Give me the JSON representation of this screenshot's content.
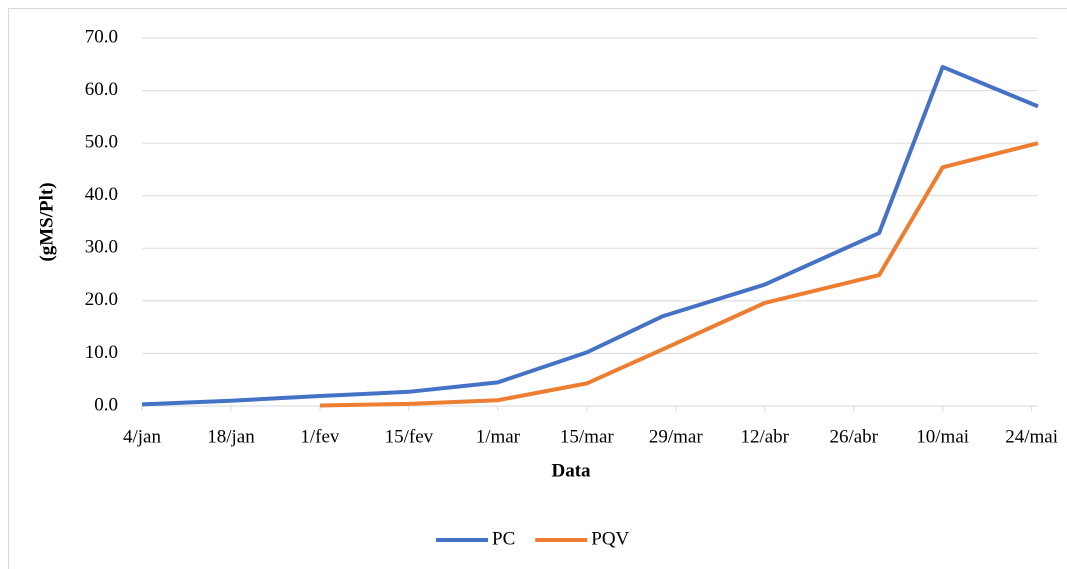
{
  "chart_data": {
    "type": "line",
    "x_label": "Data",
    "y_label": "(gMS/Plt)",
    "x": [
      4,
      18,
      32,
      46,
      60,
      74,
      86,
      102,
      120,
      130,
      145
    ],
    "series": [
      {
        "name": "PC",
        "color": "#4472c4",
        "values": [
          0.3,
          1.0,
          1.9,
          2.7,
          4.5,
          10.2,
          17.1,
          23.1,
          32.9,
          64.5,
          57.0
        ]
      },
      {
        "name": "PQV",
        "color": "#ed7d31",
        "values": [
          null,
          null,
          0.1,
          0.4,
          1.1,
          4.3,
          10.8,
          19.6,
          24.9,
          45.4,
          50.0
        ]
      }
    ],
    "xlim": [
      4,
      145
    ],
    "xticks": [
      {
        "value": 4,
        "label": "4/jan"
      },
      {
        "value": 18,
        "label": "18/jan"
      },
      {
        "value": 32,
        "label": "1/fev"
      },
      {
        "value": 46,
        "label": "15/fev"
      },
      {
        "value": 60,
        "label": "1/mar"
      },
      {
        "value": 74,
        "label": "15/mar"
      },
      {
        "value": 88,
        "label": "29/mar"
      },
      {
        "value": 102,
        "label": "12/abr"
      },
      {
        "value": 116,
        "label": "26/abr"
      },
      {
        "value": 130,
        "label": "10/mai"
      },
      {
        "value": 144,
        "label": "24/mai"
      }
    ],
    "ylim": [
      0,
      70
    ],
    "yticks": [
      {
        "value": 0,
        "label": "0.0"
      },
      {
        "value": 10,
        "label": "10.0"
      },
      {
        "value": 20,
        "label": "20.0"
      },
      {
        "value": 30,
        "label": "30.0"
      },
      {
        "value": 40,
        "label": "40.0"
      },
      {
        "value": 50,
        "label": "50.0"
      },
      {
        "value": 60,
        "label": "60.0"
      },
      {
        "value": 70,
        "label": "70.0"
      }
    ],
    "grid": true,
    "legend": "bottom"
  }
}
